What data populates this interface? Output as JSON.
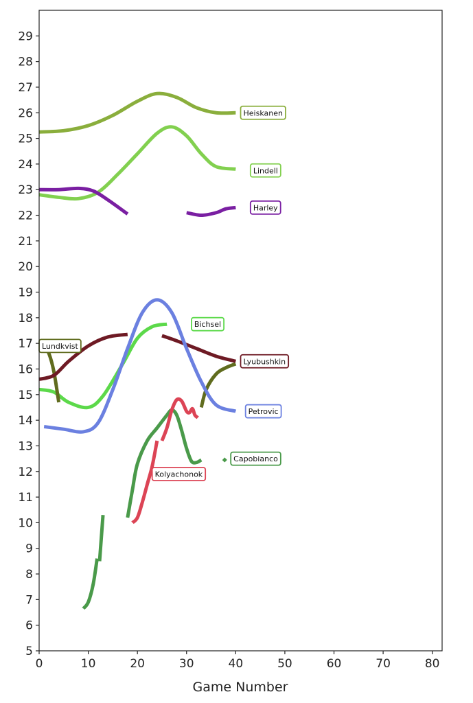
{
  "chart_data": {
    "type": "line",
    "xlabel": "Game Number",
    "ylabel": "",
    "xlim": [
      0,
      82
    ],
    "ylim": [
      5,
      30
    ],
    "xticks": [
      0,
      10,
      20,
      30,
      40,
      50,
      60,
      70,
      80
    ],
    "yticks": [
      5,
      6,
      7,
      8,
      9,
      10,
      11,
      12,
      13,
      14,
      15,
      16,
      17,
      18,
      19,
      20,
      21,
      22,
      23,
      24,
      25,
      26,
      27,
      28,
      29
    ],
    "grid": false,
    "series": [
      {
        "name": "Heiskanen",
        "color": "#8aae3c",
        "label_at": [
          41,
          26.0
        ],
        "segments": [
          [
            [
              0,
              25.25
            ],
            [
              5,
              25.3
            ],
            [
              10,
              25.5
            ],
            [
              15,
              25.9
            ],
            [
              20,
              26.45
            ],
            [
              24,
              26.75
            ],
            [
              28,
              26.6
            ],
            [
              32,
              26.2
            ],
            [
              36,
              26.0
            ],
            [
              40,
              26.0
            ]
          ]
        ]
      },
      {
        "name": "Lindell",
        "color": "#82d04f",
        "label_at": [
          43,
          23.75
        ],
        "segments": [
          [
            [
              0,
              22.8
            ],
            [
              4,
              22.7
            ],
            [
              8,
              22.65
            ],
            [
              12,
              22.9
            ],
            [
              16,
              23.6
            ],
            [
              20,
              24.4
            ],
            [
              24,
              25.2
            ],
            [
              27,
              25.45
            ],
            [
              30,
              25.1
            ],
            [
              33,
              24.4
            ],
            [
              36,
              23.9
            ],
            [
              40,
              23.8
            ]
          ]
        ]
      },
      {
        "name": "Harley",
        "color": "#7a1fa2",
        "label_at": [
          43,
          22.3
        ],
        "segments": [
          [
            [
              0,
              23.0
            ],
            [
              4,
              23.0
            ],
            [
              8,
              23.05
            ],
            [
              11,
              22.95
            ],
            [
              14,
              22.6
            ],
            [
              18,
              22.05
            ]
          ],
          [
            [
              30,
              22.1
            ],
            [
              33,
              22.0
            ],
            [
              36,
              22.1
            ],
            [
              38,
              22.25
            ],
            [
              40,
              22.3
            ]
          ]
        ]
      },
      {
        "name": "Bichsel",
        "color": "#5cd94a",
        "label_at": [
          31,
          17.75
        ],
        "segments": [
          [
            [
              0,
              15.2
            ],
            [
              3,
              15.1
            ],
            [
              6,
              14.7
            ],
            [
              10,
              14.5
            ],
            [
              13,
              14.95
            ],
            [
              17,
              16.2
            ],
            [
              20,
              17.2
            ],
            [
              23,
              17.65
            ],
            [
              26,
              17.75
            ]
          ]
        ]
      },
      {
        "name": "Lundkvist",
        "color": "#606c1e",
        "label_at": [
          0,
          16.9
        ],
        "segments": [
          [
            [
              1,
              16.9
            ],
            [
              2,
              16.6
            ],
            [
              3,
              15.9
            ],
            [
              4,
              14.7
            ]
          ],
          [
            [
              33,
              14.5
            ],
            [
              34,
              15.2
            ],
            [
              36,
              15.8
            ],
            [
              38,
              16.05
            ],
            [
              40,
              16.2
            ]
          ]
        ]
      },
      {
        "name": "Lyubushkin",
        "color": "#6e1a24",
        "label_at": [
          41,
          16.3
        ],
        "segments": [
          [
            [
              0,
              15.6
            ],
            [
              3,
              15.75
            ],
            [
              6,
              16.3
            ],
            [
              10,
              16.9
            ],
            [
              14,
              17.25
            ],
            [
              18,
              17.35
            ]
          ],
          [
            [
              25,
              17.3
            ],
            [
              28,
              17.1
            ],
            [
              32,
              16.8
            ],
            [
              36,
              16.5
            ],
            [
              40,
              16.3
            ]
          ]
        ]
      },
      {
        "name": "Petrovic",
        "color": "#6b80e0",
        "label_at": [
          42,
          14.35
        ],
        "segments": [
          [
            [
              1,
              13.75
            ],
            [
              5,
              13.65
            ],
            [
              9,
              13.55
            ],
            [
              12,
              13.9
            ],
            [
              15,
              15.2
            ],
            [
              18,
              16.8
            ],
            [
              21,
              18.2
            ],
            [
              24,
              18.7
            ],
            [
              27,
              18.2
            ],
            [
              30,
              16.8
            ],
            [
              33,
              15.5
            ],
            [
              36,
              14.6
            ],
            [
              40,
              14.35
            ]
          ]
        ]
      },
      {
        "name": "Capobianco",
        "color": "#4a9a4a",
        "label_at": [
          39,
          12.5
        ],
        "segments": [
          [
            [
              9,
              6.65
            ],
            [
              10,
              6.9
            ],
            [
              11,
              7.6
            ],
            [
              11.8,
              8.6
            ]
          ],
          [
            [
              12.3,
              8.5
            ],
            [
              13,
              10.3
            ]
          ],
          [
            [
              18,
              10.2
            ],
            [
              19,
              11.3
            ],
            [
              20,
              12.3
            ],
            [
              22,
              13.2
            ],
            [
              24,
              13.7
            ],
            [
              26,
              14.2
            ],
            [
              27,
              14.4
            ],
            [
              28,
              14.2
            ],
            [
              29,
              13.6
            ],
            [
              30,
              12.9
            ],
            [
              31,
              12.4
            ],
            [
              32,
              12.35
            ],
            [
              33,
              12.45
            ]
          ],
          [
            [
              37.5,
              12.4
            ],
            [
              38,
              12.5
            ]
          ]
        ]
      },
      {
        "name": "Kolyachonok",
        "color": "#dc4455",
        "label_at": [
          23,
          11.9
        ],
        "segments": [
          [
            [
              19,
              10.0
            ],
            [
              20,
              10.2
            ],
            [
              21,
              10.8
            ],
            [
              22,
              11.5
            ],
            [
              23,
              12.2
            ],
            [
              24,
              13.2
            ]
          ],
          [
            [
              25,
              13.2
            ],
            [
              26,
              13.7
            ],
            [
              27,
              14.4
            ],
            [
              28,
              14.8
            ],
            [
              29,
              14.75
            ],
            [
              30,
              14.35
            ],
            [
              30.6,
              14.3
            ],
            [
              31.2,
              14.45
            ],
            [
              31.7,
              14.2
            ],
            [
              32.3,
              14.1
            ]
          ]
        ]
      }
    ]
  }
}
